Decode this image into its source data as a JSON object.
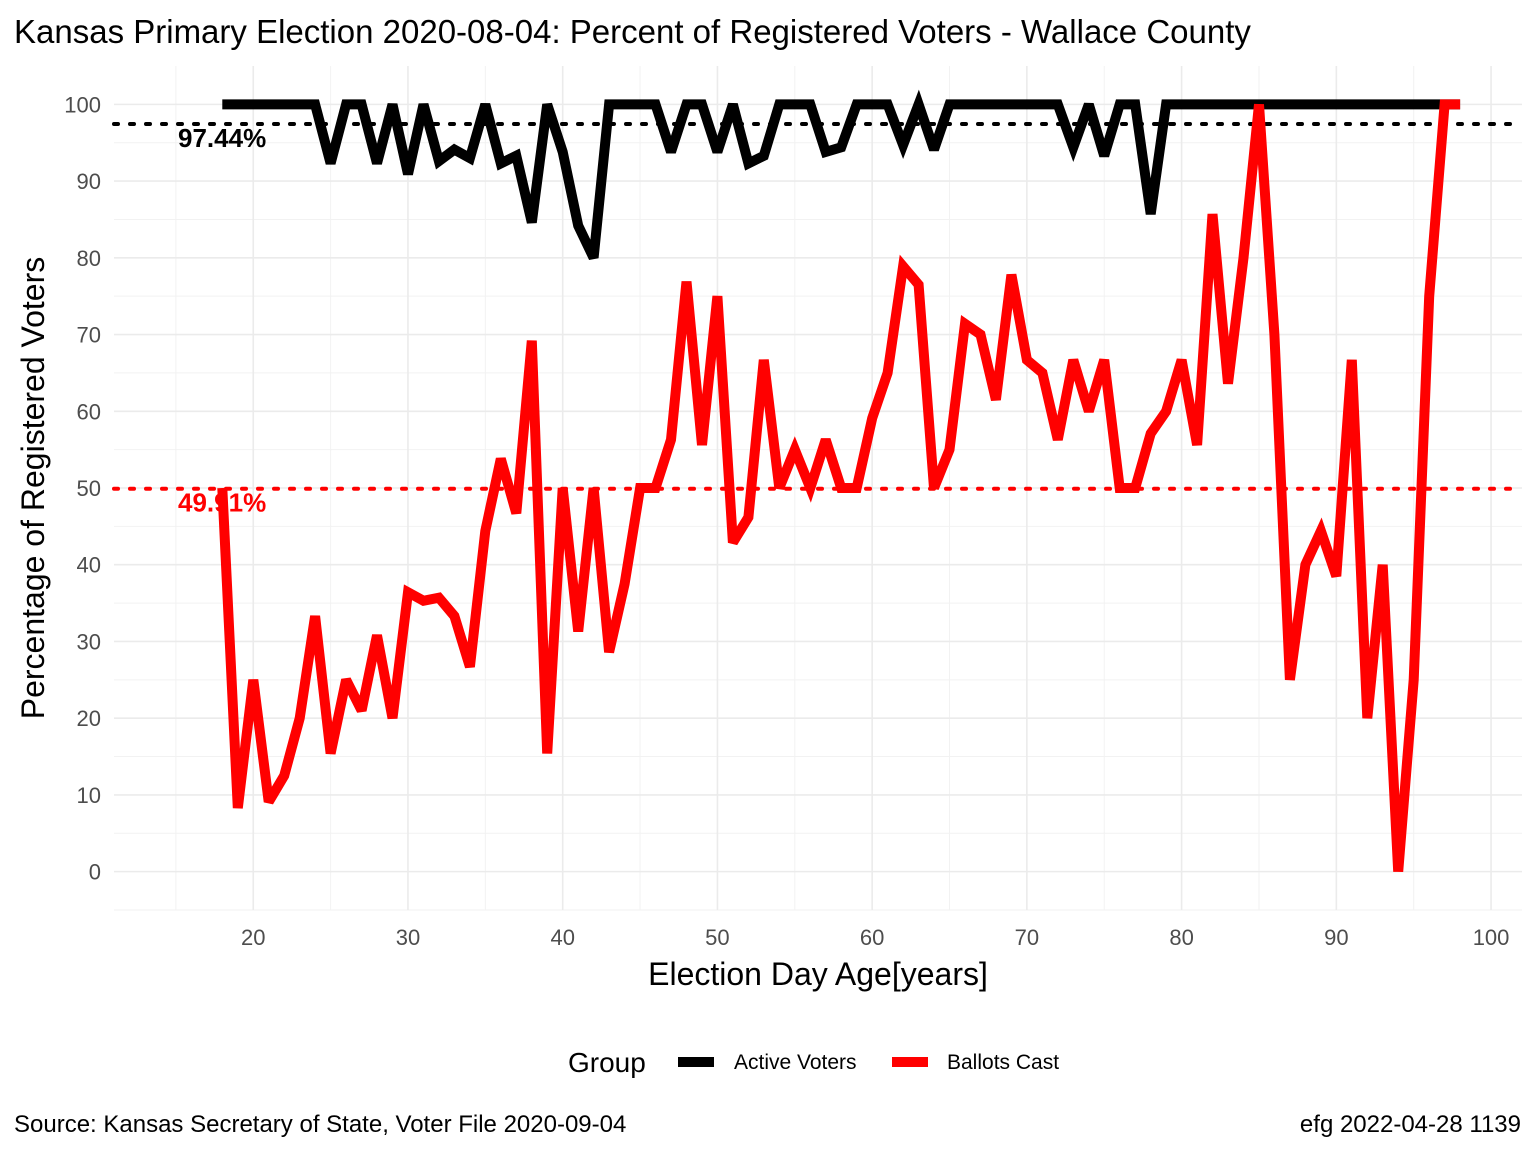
{
  "chart_data": {
    "type": "line",
    "title": "Kansas Primary Election 2020-08-04:  Percent of Registered Voters - Wallace County",
    "xlabel": "Election Day Age[years]",
    "ylabel": "Percentage of Registered Voters",
    "xlim": [
      11,
      102
    ],
    "ylim": [
      -5,
      105
    ],
    "x_ticks": [
      20,
      30,
      40,
      50,
      60,
      70,
      80,
      90,
      100
    ],
    "y_ticks": [
      0,
      10,
      20,
      30,
      40,
      50,
      60,
      70,
      80,
      90,
      100
    ],
    "grid": true,
    "legend": {
      "title": "Group",
      "position": "bottom"
    },
    "series": [
      {
        "name": "Active Voters",
        "color": "#000000",
        "x": [
          18,
          19,
          20,
          21,
          22,
          23,
          24,
          25,
          26,
          27,
          28,
          29,
          30,
          31,
          32,
          33,
          34,
          35,
          36,
          37,
          38,
          39,
          40,
          41,
          42,
          43,
          44,
          45,
          46,
          47,
          48,
          49,
          50,
          51,
          52,
          53,
          54,
          55,
          56,
          57,
          58,
          59,
          60,
          61,
          62,
          63,
          64,
          65,
          66,
          67,
          68,
          69,
          70,
          71,
          72,
          73,
          74,
          75,
          76,
          77,
          78,
          79,
          80,
          81,
          82,
          83,
          84,
          85,
          86,
          87,
          88,
          89,
          90,
          91,
          92,
          93,
          94,
          95,
          96,
          97,
          98
        ],
        "values": [
          100,
          100,
          100,
          100,
          100,
          100,
          100,
          92.3,
          100,
          100,
          92.3,
          100,
          90.9,
          100,
          92.6,
          94.1,
          93,
          100,
          92.3,
          93.3,
          84.6,
          100,
          93.8,
          84.2,
          80,
          100,
          100,
          100,
          100,
          93.8,
          100,
          100,
          93.8,
          100,
          92.3,
          93.3,
          100,
          100,
          100,
          93.8,
          94.4,
          100,
          100,
          100,
          94.7,
          100,
          94.1,
          100,
          100,
          100,
          100,
          100,
          100,
          100,
          100,
          94.4,
          100,
          93.3,
          100,
          100,
          85.7,
          100,
          100,
          100,
          100,
          100,
          100,
          100,
          100,
          100,
          100,
          100,
          100,
          100,
          100,
          100,
          100,
          100,
          100,
          100,
          100
        ]
      },
      {
        "name": "Ballots Cast",
        "color": "#ff0000",
        "x": [
          18,
          19,
          20,
          21,
          22,
          23,
          24,
          25,
          26,
          27,
          28,
          29,
          30,
          31,
          32,
          33,
          34,
          35,
          36,
          37,
          38,
          39,
          40,
          41,
          42,
          43,
          44,
          45,
          46,
          47,
          48,
          49,
          50,
          51,
          52,
          53,
          54,
          55,
          56,
          57,
          58,
          59,
          60,
          61,
          62,
          63,
          64,
          65,
          66,
          67,
          68,
          69,
          70,
          71,
          72,
          73,
          74,
          75,
          76,
          77,
          78,
          79,
          80,
          81,
          82,
          83,
          84,
          85,
          86,
          87,
          88,
          89,
          90,
          91,
          92,
          93,
          94,
          95,
          96,
          97,
          98
        ],
        "values": [
          50,
          8.3,
          25,
          9.1,
          12.5,
          20,
          33.3,
          15.4,
          25,
          21,
          30.8,
          20,
          36.4,
          35.3,
          35.7,
          33.3,
          26.7,
          44.4,
          53.8,
          46.7,
          69.2,
          15.4,
          50,
          31.3,
          50,
          28.6,
          37.5,
          50,
          50,
          56.3,
          76.9,
          55.6,
          75,
          42.9,
          46.2,
          66.7,
          50,
          55,
          50,
          56.3,
          50,
          50,
          59.1,
          65,
          78.9,
          76.5,
          50,
          55,
          71.4,
          70,
          61.5,
          77.8,
          66.7,
          65,
          56.3,
          66.7,
          60,
          66.7,
          50,
          50,
          57.1,
          60,
          66.7,
          55.6,
          85.7,
          63.6,
          80,
          100,
          70,
          25,
          40,
          44.4,
          38.5,
          66.7,
          20,
          40,
          0,
          25,
          75,
          100,
          100
        ]
      }
    ],
    "reference_lines": [
      {
        "series": "Active Voters",
        "value": 97.44,
        "label": "97.44%",
        "color": "#000000"
      },
      {
        "series": "Ballots Cast",
        "value": 49.91,
        "label": "49.91%",
        "color": "#ff0000"
      }
    ]
  },
  "caption": {
    "left": "Source:  Kansas Secretary of State, Voter File  2020-09-04",
    "right": "efg 2022-04-28 1139"
  }
}
